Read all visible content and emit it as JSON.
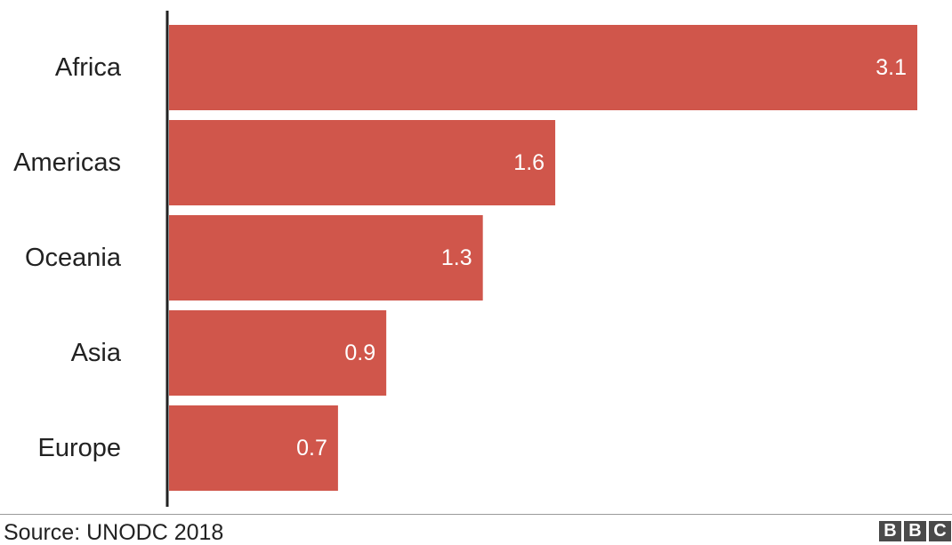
{
  "chart_data": {
    "type": "bar",
    "orientation": "horizontal",
    "categories": [
      "Africa",
      "Americas",
      "Oceania",
      "Asia",
      "Europe"
    ],
    "values": [
      3.1,
      1.6,
      1.3,
      0.9,
      0.7
    ],
    "value_labels": [
      "3.1",
      "1.6",
      "1.3",
      "0.9",
      "0.7"
    ],
    "xlim": [
      0,
      3.1
    ],
    "grid": false,
    "bar_color": "#d0564b",
    "axis_color": "#222222"
  },
  "footer": {
    "source": "Source: UNODC 2018",
    "logo_letters": [
      "B",
      "B",
      "C"
    ]
  }
}
